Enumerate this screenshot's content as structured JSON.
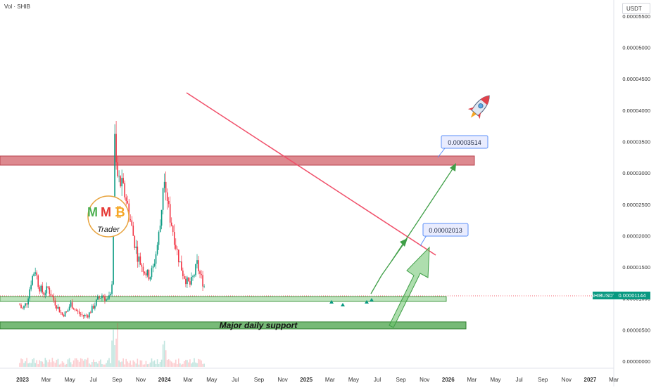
{
  "header": {
    "volume_label": "Vol · SHIB",
    "currency": "USDT"
  },
  "colors": {
    "up": "#089981",
    "down": "#f23645",
    "trendline": "#f0506a",
    "resistance": "#d2616a",
    "support": "#5fae5f",
    "arrow": "#3f9f47",
    "price_tag": "#089981"
  },
  "chart_data": {
    "type": "candlestick",
    "symbol": "SHIBUSDT",
    "last_price": 1.144e-05,
    "last_price_label": "0.00001144",
    "y_ticks": [
      "0.00000000",
      "0.00000500",
      "0.00001000",
      "0.00001500",
      "0.00002000",
      "0.00002500",
      "0.00003000",
      "0.00003500",
      "0.00004000",
      "0.00004500",
      "0.00005000",
      "0.00005500"
    ],
    "ylim": [
      0,
      5.6e-05
    ],
    "x_ticks": [
      "2023",
      "Mar",
      "May",
      "Jul",
      "Sep",
      "Nov",
      "2024",
      "Mar",
      "May",
      "Jul",
      "Sep",
      "Nov",
      "2025",
      "Mar",
      "May",
      "Jul",
      "Sep",
      "Nov",
      "2026",
      "Mar",
      "May",
      "Jul",
      "Sep",
      "Nov",
      "2027",
      "Mar"
    ],
    "price_path": [
      [
        0,
        9e-06
      ],
      [
        0.2,
        8.2e-06
      ],
      [
        0.6,
        9.4e-06
      ],
      [
        1.0,
        1.3e-05
      ],
      [
        1.3,
        1.48e-05
      ],
      [
        1.6,
        1.2e-05
      ],
      [
        2.0,
        1.08e-05
      ],
      [
        2.4,
        1.16e-05
      ],
      [
        2.8,
        1e-05
      ],
      [
        3.2,
        8.6e-06
      ],
      [
        3.6,
        7.4e-06
      ],
      [
        4.0,
        7.8e-06
      ],
      [
        4.3,
        9.2e-06
      ],
      [
        4.7,
        8.2e-06
      ],
      [
        5.0,
        7.6e-06
      ],
      [
        5.4,
        7.2e-06
      ],
      [
        5.8,
        7.4e-06
      ],
      [
        6.2,
        8.6e-06
      ],
      [
        6.6,
        9.8e-06
      ],
      [
        7.0,
        1.06e-05
      ],
      [
        7.4,
        9.6e-06
      ],
      [
        7.7,
        1.04e-05
      ],
      [
        7.85,
        1.4e-05
      ],
      [
        7.95,
        2.4e-05
      ],
      [
        8.0,
        3.8e-05
      ],
      [
        8.08,
        3.2e-05
      ],
      [
        8.3,
        2.9e-05
      ],
      [
        8.6,
        2.8e-05
      ],
      [
        9.0,
        2.6e-05
      ],
      [
        9.3,
        2.3e-05
      ],
      [
        9.6,
        2e-05
      ],
      [
        10.0,
        1.65e-05
      ],
      [
        10.4,
        1.5e-05
      ],
      [
        10.7,
        1.4e-05
      ],
      [
        11.0,
        1.35e-05
      ],
      [
        11.3,
        1.5e-05
      ],
      [
        11.6,
        1.8e-05
      ],
      [
        11.9,
        2.2e-05
      ],
      [
        12.1,
        2.75e-05
      ],
      [
        12.2,
        3.1e-05
      ],
      [
        12.35,
        2.85e-05
      ],
      [
        12.6,
        2.4e-05
      ],
      [
        12.9,
        2.15e-05
      ],
      [
        13.2,
        1.85e-05
      ],
      [
        13.5,
        1.6e-05
      ],
      [
        13.8,
        1.4e-05
      ],
      [
        14.1,
        1.28e-05
      ],
      [
        14.4,
        1.22e-05
      ],
      [
        14.7,
        1.35e-05
      ],
      [
        15.0,
        1.55e-05
      ],
      [
        15.2,
        1.4e-05
      ],
      [
        15.5,
        1.25e-05
      ],
      [
        15.7,
        1.15e-05
      ]
    ],
    "annotations": {
      "resistance_zone": {
        "from": 3.34e-05,
        "to": 3.49e-05
      },
      "support_zone": {
        "from": 1.05e-05,
        "to": 1.13e-05
      },
      "major_support_zone": {
        "from": 6.2e-06,
        "to": 7.3e-06
      },
      "major_support_label": "Major daily support",
      "target_low_label": "0.00002013",
      "target_high_label": "0.00003514",
      "logo_letters": "MM₿",
      "logo_caption": "Trader"
    }
  }
}
